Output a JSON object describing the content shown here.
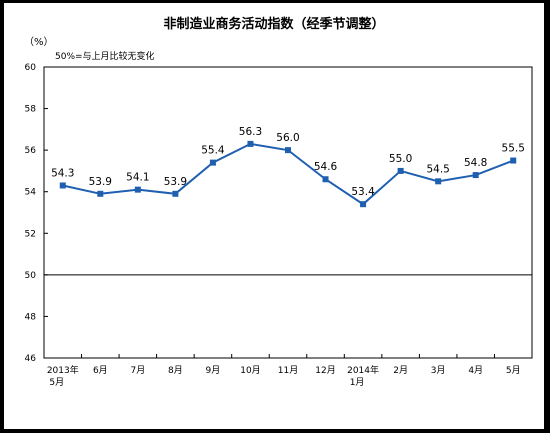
{
  "chart_data": {
    "type": "line",
    "title": "非制造业商务活动指数（经季节调整）",
    "unit_label": "（%）",
    "note": "50%=与上月比较无变化",
    "categories": [
      [
        "2013年",
        "5月"
      ],
      [
        "6月"
      ],
      [
        "7月"
      ],
      [
        "8月"
      ],
      [
        "9月"
      ],
      [
        "10月"
      ],
      [
        "11月"
      ],
      [
        "12月"
      ],
      [
        "2014年",
        "1月"
      ],
      [
        "2月"
      ],
      [
        "3月"
      ],
      [
        "4月"
      ],
      [
        "5月"
      ]
    ],
    "values": [
      54.3,
      53.9,
      54.1,
      53.9,
      55.4,
      56.3,
      56.0,
      54.6,
      53.4,
      55.0,
      54.5,
      54.8,
      55.5
    ],
    "value_labels": [
      "54.3",
      "53.9",
      "54.1",
      "53.9",
      "55.4",
      "56.3",
      "56.0",
      "54.6",
      "53.4",
      "55.0",
      "54.5",
      "54.8",
      "55.5"
    ],
    "ylim": [
      46,
      60
    ],
    "yticks": [
      46,
      48,
      50,
      52,
      54,
      56,
      58,
      60
    ],
    "reference_line": 50,
    "grid": false,
    "line_color": "#1f5fb0",
    "marker_color": "#1f5fb0",
    "legend": "none"
  }
}
